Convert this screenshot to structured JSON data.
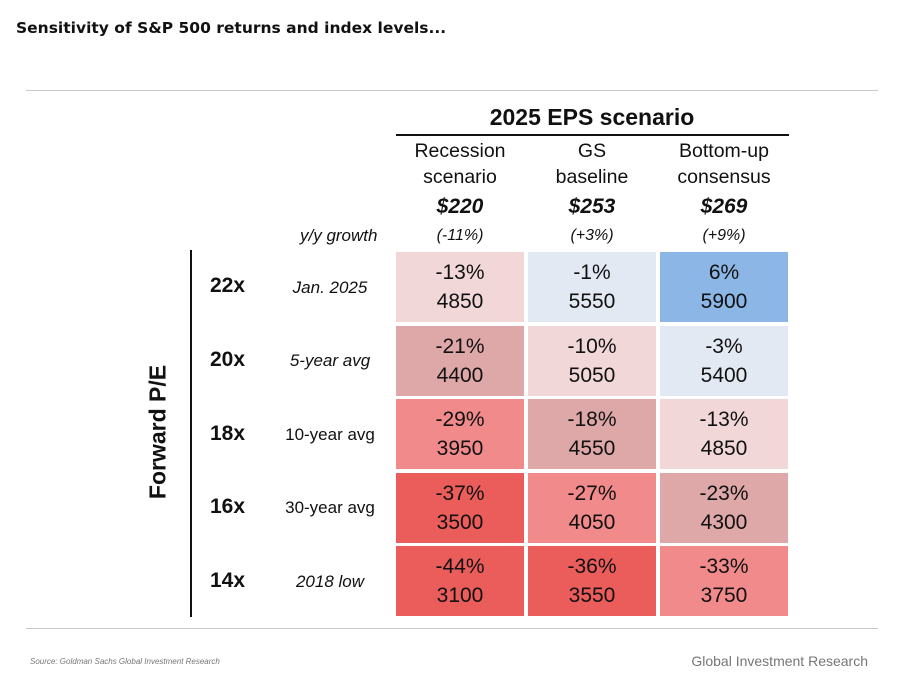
{
  "page_title": "Sensitivity of S&P 500 returns and index levels...",
  "header": {
    "eps_scenario_title": "2025 EPS scenario",
    "yy_label": "y/y growth",
    "columns": [
      {
        "line1": "Recession",
        "line2": "scenario",
        "eps": "$220",
        "growth": "(-11%)"
      },
      {
        "line1": "GS",
        "line2": "baseline",
        "eps": "$253",
        "growth": "(+3%)"
      },
      {
        "line1": "Bottom-up",
        "line2": "consensus",
        "eps": "$269",
        "growth": "(+9%)"
      }
    ]
  },
  "axis_title": "Forward P/E",
  "rows": [
    {
      "multiple": "22x",
      "ref": "Jan. 2025"
    },
    {
      "multiple": "20x",
      "ref": "5-year avg"
    },
    {
      "multiple": "18x",
      "ref": "10-year avg"
    },
    {
      "multiple": "16x",
      "ref": "30-year avg"
    },
    {
      "multiple": "14x",
      "ref": "2018 low"
    }
  ],
  "chart_data": {
    "type": "table",
    "title": "2025 EPS scenario",
    "ylabel": "Forward P/E",
    "columns": [
      "Recession scenario $220 (-11%)",
      "GS baseline $253 (+3%)",
      "Bottom-up consensus $269 (+9%)"
    ],
    "rows": [
      "22x Jan. 2025",
      "20x 5-year avg",
      "18x 10-year avg",
      "16x 30-year avg",
      "14x 2018 low"
    ],
    "cells": [
      [
        {
          "ret": "-13%",
          "level": "4850",
          "color": "#f2d7d8"
        },
        {
          "ret": "-1%",
          "level": "5550",
          "color": "#e3e9f3"
        },
        {
          "ret": "6%",
          "level": "5900",
          "color": "#8cb6e5"
        }
      ],
      [
        {
          "ret": "-21%",
          "level": "4400",
          "color": "#dea8a8"
        },
        {
          "ret": "-10%",
          "level": "5050",
          "color": "#f2d7d8"
        },
        {
          "ret": "-3%",
          "level": "5400",
          "color": "#e3e9f3"
        }
      ],
      [
        {
          "ret": "-29%",
          "level": "3950",
          "color": "#f08a8b"
        },
        {
          "ret": "-18%",
          "level": "4550",
          "color": "#dea8a8"
        },
        {
          "ret": "-13%",
          "level": "4850",
          "color": "#f2d7d8"
        }
      ],
      [
        {
          "ret": "-37%",
          "level": "3500",
          "color": "#ea5d5a"
        },
        {
          "ret": "-27%",
          "level": "4050",
          "color": "#f08a8b"
        },
        {
          "ret": "-23%",
          "level": "4300",
          "color": "#dea8a8"
        }
      ],
      [
        {
          "ret": "-44%",
          "level": "3100",
          "color": "#ea5d5a"
        },
        {
          "ret": "-36%",
          "level": "3550",
          "color": "#ea5d5a"
        },
        {
          "ret": "-33%",
          "level": "3750",
          "color": "#f08a8b"
        }
      ]
    ]
  },
  "footer": {
    "source": "Source: Goldman Sachs Global Investment Research",
    "brand": "Global Investment Research"
  }
}
